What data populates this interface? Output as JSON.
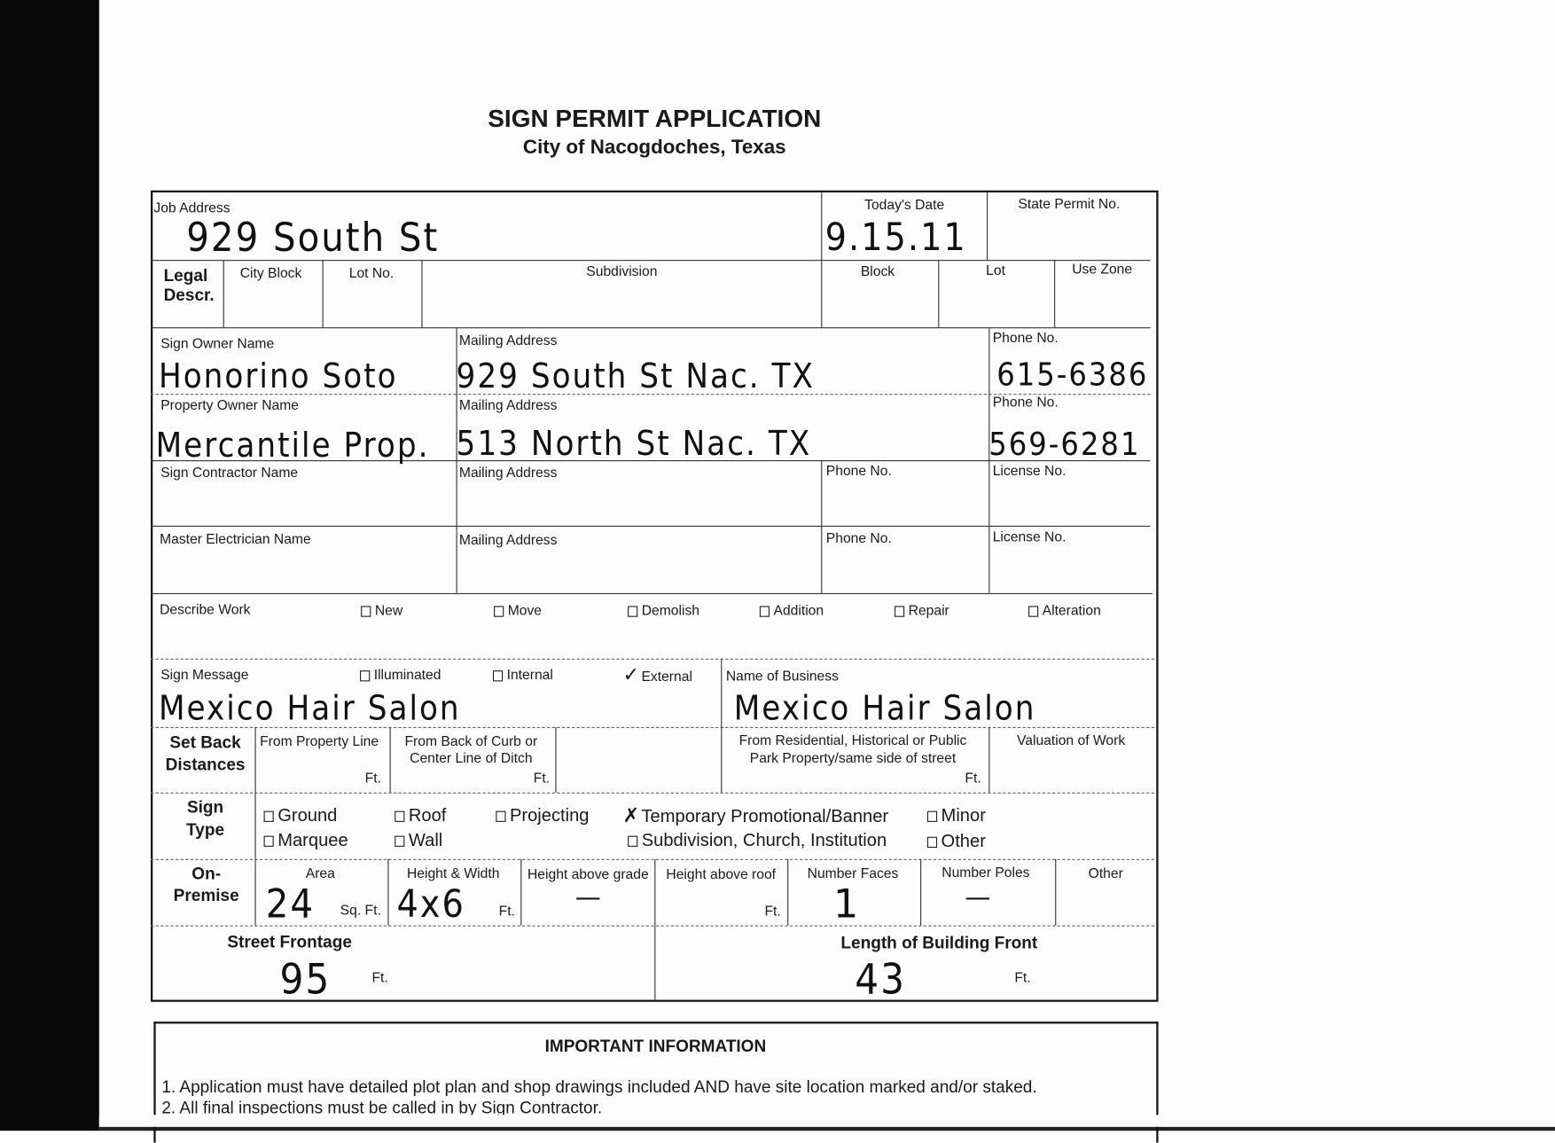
{
  "header": {
    "title": "SIGN PERMIT APPLICATION",
    "subtitle": "City of Nacogdoches, Texas"
  },
  "row1": {
    "job_address_label": "Job Address",
    "job_address": "929 South St",
    "todays_date_label": "Today's Date",
    "todays_date": "9.15.11",
    "state_permit_label": "State Permit No."
  },
  "legal": {
    "label_1": "Legal",
    "label_2": "Descr.",
    "city_block": "City Block",
    "lot_no": "Lot No.",
    "subdivision": "Subdivision",
    "block": "Block",
    "lot": "Lot",
    "use_zone": "Use Zone"
  },
  "sign_owner": {
    "label": "Sign Owner Name",
    "name": "Honorino Soto",
    "mailing_label": "Mailing Address",
    "mailing": "929 South St Nac. TX",
    "phone_label": "Phone No.",
    "phone": "615-6386"
  },
  "property_owner": {
    "label": "Property Owner Name",
    "name": "Mercantile Prop.",
    "mailing_label": "Mailing Address",
    "mailing": "513 North St Nac. TX",
    "phone_label": "Phone No.",
    "phone": "569-6281"
  },
  "contractor": {
    "label": "Sign Contractor Name",
    "mailing_label": "Mailing Address",
    "phone_label": "Phone No.",
    "license_label": "License No."
  },
  "electrician": {
    "label": "Master Electrician Name",
    "mailing_label": "Mailing Address",
    "phone_label": "Phone No.",
    "license_label": "License No."
  },
  "describe_work": {
    "label": "Describe Work",
    "options": [
      {
        "label": "New",
        "checked": false
      },
      {
        "label": "Move",
        "checked": false
      },
      {
        "label": "Demolish",
        "checked": false
      },
      {
        "label": "Addition",
        "checked": false
      },
      {
        "label": "Repair",
        "checked": false
      },
      {
        "label": "Alteration",
        "checked": false
      }
    ]
  },
  "sign_message": {
    "label": "Sign Message",
    "message": "Mexico Hair Salon",
    "options": [
      {
        "label": "Illuminated",
        "checked": false
      },
      {
        "label": "Internal",
        "checked": false
      },
      {
        "label": "External",
        "checked": true
      }
    ],
    "business_label": "Name of Business",
    "business": "Mexico Hair Salon"
  },
  "setback": {
    "label_1": "Set Back",
    "label_2": "Distances",
    "property_line": "From Property Line",
    "curb_1": "From Back of Curb or",
    "curb_2": "Center Line of Ditch",
    "residential_1": "From Residential, Historical or Public",
    "residential_2": "Park Property/same side of street",
    "valuation": "Valuation of Work",
    "ft": "Ft."
  },
  "sign_type": {
    "label_1": "Sign",
    "label_2": "Type",
    "options": [
      {
        "label": "Ground",
        "checked": false
      },
      {
        "label": "Roof",
        "checked": false
      },
      {
        "label": "Projecting",
        "checked": false
      },
      {
        "label": "Temporary Promotional/Banner",
        "checked": true
      },
      {
        "label": "Minor",
        "checked": false
      },
      {
        "label": "Marquee",
        "checked": false
      },
      {
        "label": "Wall",
        "checked": false
      },
      {
        "label": "Subdivision, Church, Institution",
        "checked": false
      },
      {
        "label": "Other",
        "checked": false
      }
    ]
  },
  "on_premise": {
    "label_1": "On-",
    "label_2": "Premise",
    "area_label": "Area",
    "area": "24",
    "sqft": "Sq. Ft.",
    "hw_label": "Height & Width",
    "hw": "4x6",
    "ft": "Ft.",
    "grade_label": "Height above grade",
    "grade": "—",
    "roof_label": "Height above roof",
    "faces_label": "Number Faces",
    "faces": "1",
    "poles_label": "Number Poles",
    "poles": "—",
    "other_label": "Other"
  },
  "frontage": {
    "street_label": "Street Frontage",
    "street": "95",
    "building_label": "Length of Building Front",
    "building": "43",
    "ft": "Ft."
  },
  "info": {
    "title": "IMPORTANT INFORMATION",
    "items": [
      "1.  Application must have detailed plot plan and shop drawings included AND have site location marked and/or staked.",
      "2.  All final inspections must be called in by Sign Contractor."
    ]
  }
}
